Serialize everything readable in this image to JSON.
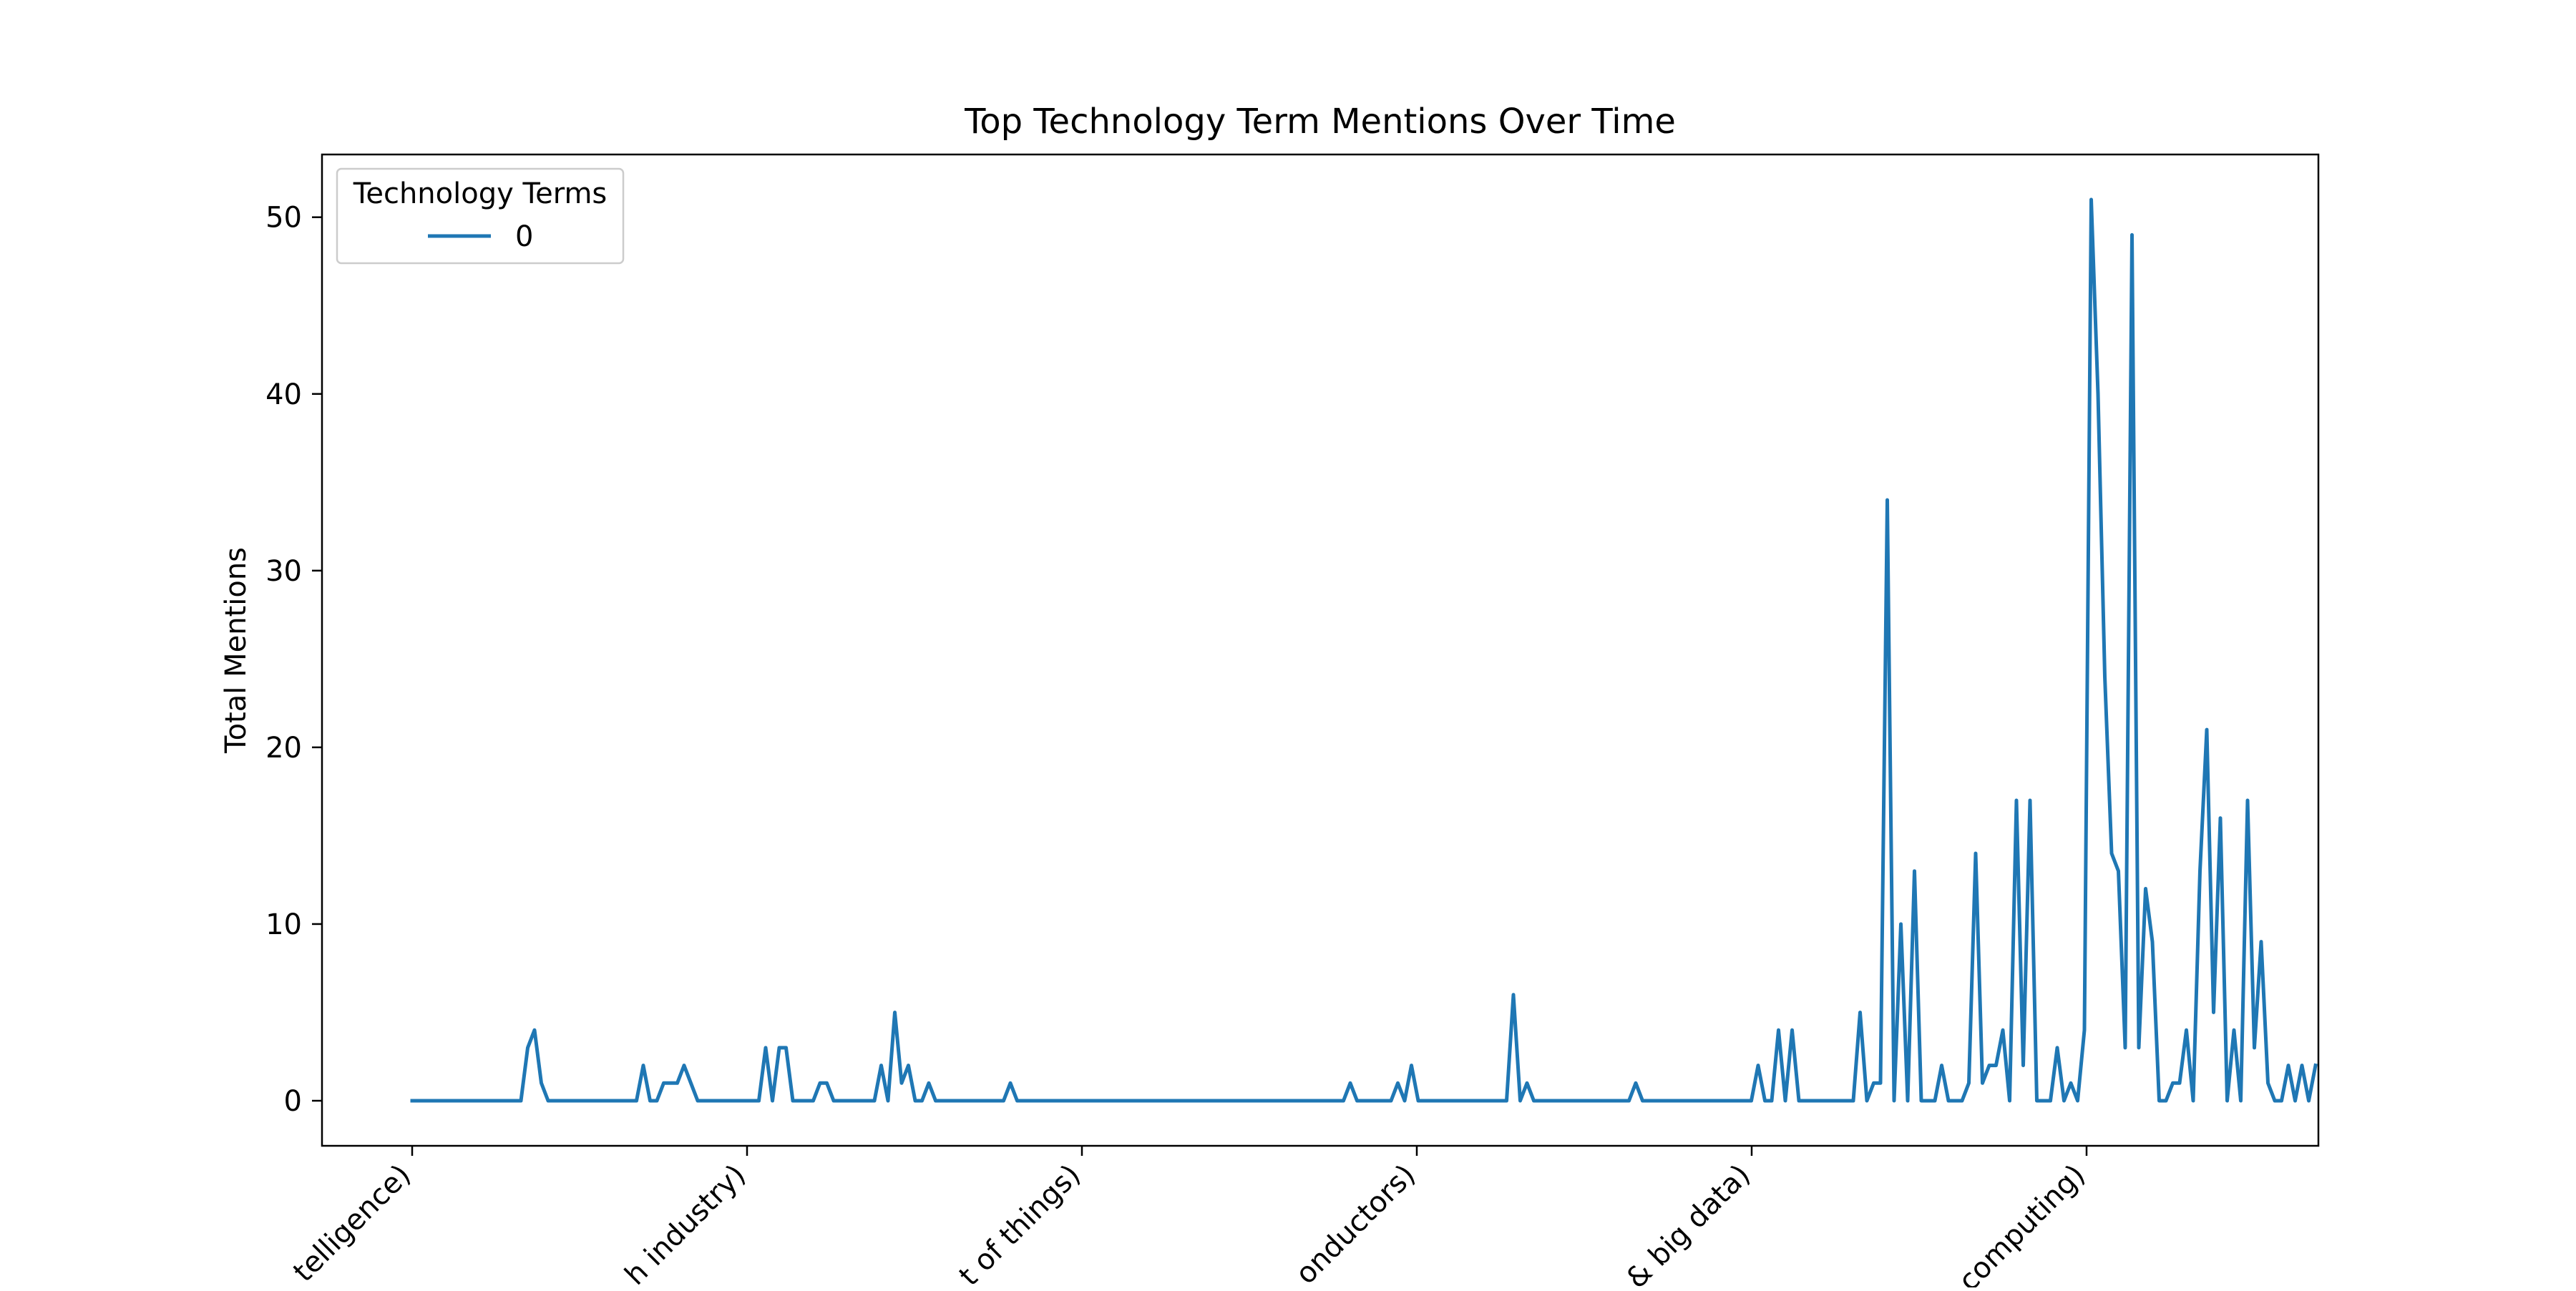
{
  "chart_data": {
    "type": "line",
    "title": "Top Technology Term Mentions Over Time",
    "xlabel": "",
    "ylabel": "Total Mentions",
    "ylim": [
      -2.55,
      53.55
    ],
    "yticks": [
      0,
      10,
      20,
      30,
      40,
      50
    ],
    "x_tick_labels": [
      "telligence)",
      "h industry)",
      "t of things)",
      "onductors)",
      "& big data)",
      "computing)"
    ],
    "grid": false,
    "legend": {
      "title": "Technology Terms",
      "placement": "top-left"
    },
    "colors": {
      "series": "#1f77b4",
      "axes": "#000000",
      "background": "#ffffff"
    },
    "series": [
      {
        "name": "0",
        "values": [
          0,
          0,
          0,
          0,
          0,
          0,
          0,
          0,
          0,
          0,
          0,
          0,
          0,
          0,
          0,
          0,
          0,
          3,
          4,
          1,
          0,
          0,
          0,
          0,
          0,
          0,
          0,
          0,
          0,
          0,
          0,
          0,
          0,
          0,
          2,
          0,
          0,
          1,
          1,
          1,
          2,
          1,
          0,
          0,
          0,
          0,
          0,
          0,
          0,
          0,
          0,
          0,
          3,
          0,
          3,
          3,
          0,
          0,
          0,
          0,
          1,
          1,
          0,
          0,
          0,
          0,
          0,
          0,
          0,
          2,
          0,
          5,
          1,
          2,
          0,
          0,
          1,
          0,
          0,
          0,
          0,
          0,
          0,
          0,
          0,
          0,
          0,
          0,
          1,
          0,
          0,
          0,
          0,
          0,
          0,
          0,
          0,
          0,
          0,
          0,
          0,
          0,
          0,
          0,
          0,
          0,
          0,
          0,
          0,
          0,
          0,
          0,
          0,
          0,
          0,
          0,
          0,
          0,
          0,
          0,
          0,
          0,
          0,
          0,
          0,
          0,
          0,
          0,
          0,
          0,
          0,
          0,
          0,
          0,
          0,
          0,
          0,
          0,
          1,
          0,
          0,
          0,
          0,
          0,
          0,
          1,
          0,
          2,
          0,
          0,
          0,
          0,
          0,
          0,
          0,
          0,
          0,
          0,
          0,
          0,
          0,
          0,
          6,
          0,
          1,
          0,
          0,
          0,
          0,
          0,
          0,
          0,
          0,
          0,
          0,
          0,
          0,
          0,
          0,
          0,
          1,
          0,
          0,
          0,
          0,
          0,
          0,
          0,
          0,
          0,
          0,
          0,
          0,
          0,
          0,
          0,
          0,
          0,
          2,
          0,
          0,
          4,
          0,
          4,
          0,
          0,
          0,
          0,
          0,
          0,
          0,
          0,
          0,
          5,
          0,
          1,
          1,
          34,
          0,
          10,
          0,
          13,
          0,
          0,
          0,
          2,
          0,
          0,
          0,
          1,
          14,
          1,
          2,
          2,
          4,
          0,
          17,
          2,
          17,
          0,
          0,
          0,
          3,
          0,
          1,
          0,
          4,
          51,
          40,
          24,
          14,
          13,
          3,
          49,
          3,
          12,
          9,
          0,
          0,
          1,
          1,
          4,
          0,
          13,
          21,
          5,
          16,
          0,
          4,
          0,
          17,
          3,
          9,
          1,
          0,
          0,
          2,
          0,
          2,
          0,
          2
        ]
      }
    ]
  }
}
